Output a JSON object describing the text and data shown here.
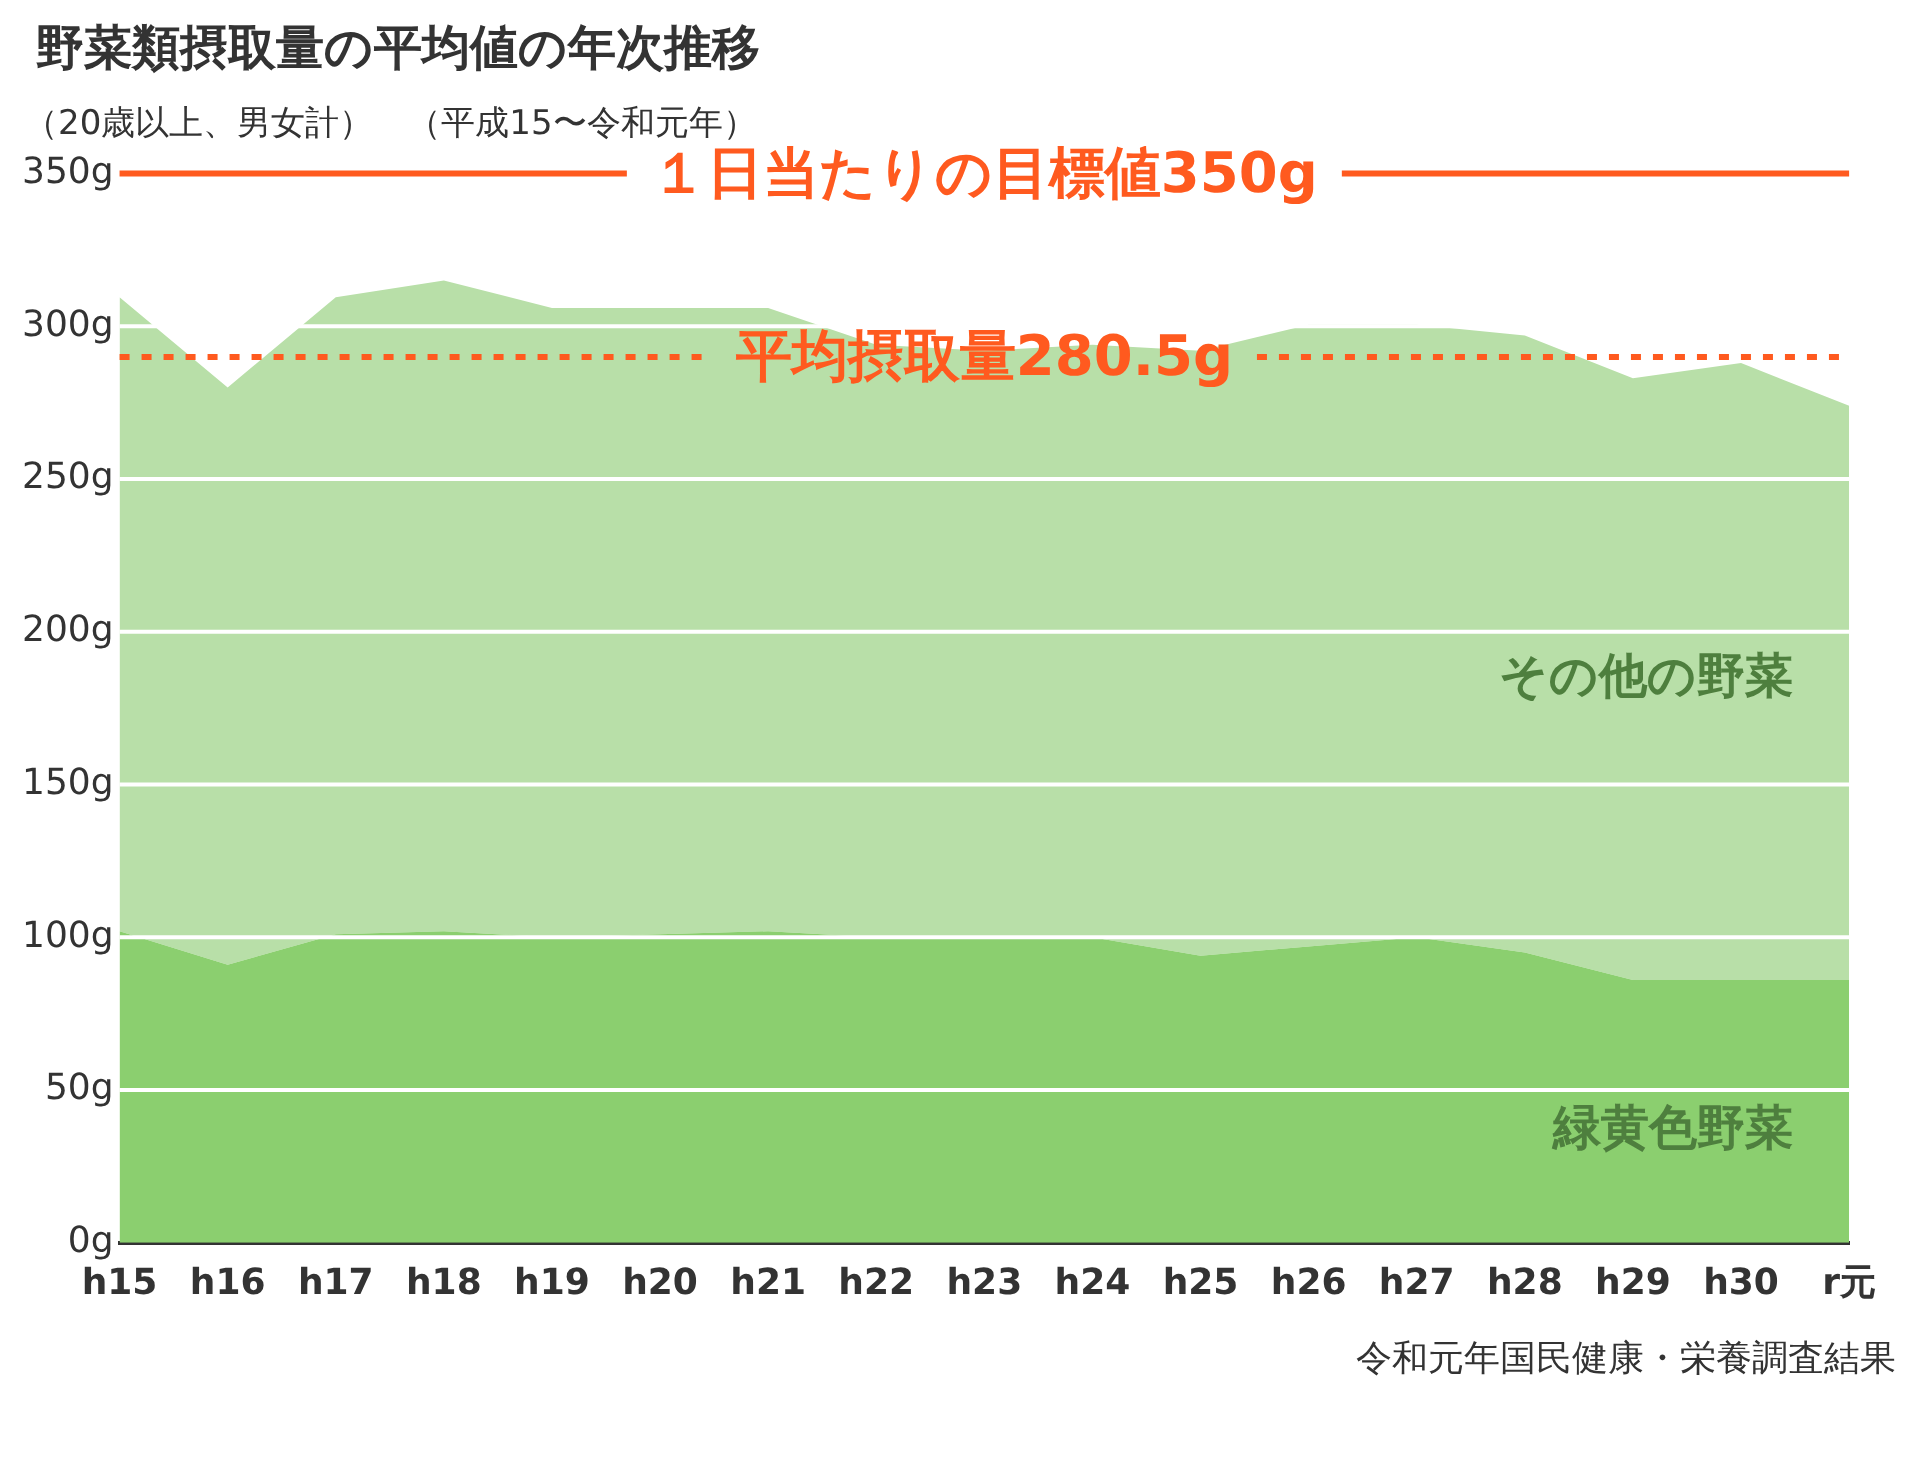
{
  "chart_data": {
    "type": "area",
    "stacked": true,
    "title": "野菜類摂取量の平均値の年次推移",
    "subtitle": "（20歳以上、男女計）　（平成15〜令和元年）",
    "categories": [
      "h15",
      "h16",
      "h17",
      "h18",
      "h19",
      "h20",
      "h21",
      "h22",
      "h23",
      "h24",
      "h25",
      "h26",
      "h27",
      "h28",
      "h29",
      "h30",
      "r元"
    ],
    "series": [
      {
        "name": "緑黄色野菜",
        "color": "#8bcf6f",
        "values": [
          102,
          91,
          101,
          102,
          100,
          101,
          102,
          100,
          100,
          100,
          94,
          97,
          100,
          95,
          86,
          86,
          86
        ]
      },
      {
        "name": "その他の野菜",
        "color": "#b8dfa8",
        "values": [
          207.5,
          189,
          208.5,
          213,
          206,
          205,
          204,
          194,
          192,
          194,
          198,
          203.5,
          200.5,
          202,
          197,
          202,
          188
        ]
      }
    ],
    "ylim": [
      0,
      350
    ],
    "yticks": [
      {
        "value": 0,
        "label": "0g"
      },
      {
        "value": 50,
        "label": "50g"
      },
      {
        "value": 100,
        "label": "100g"
      },
      {
        "value": 150,
        "label": "150g"
      },
      {
        "value": 200,
        "label": "200g"
      },
      {
        "value": 250,
        "label": "250g"
      },
      {
        "value": 300,
        "label": "300g"
      },
      {
        "value": 350,
        "label": "350g"
      }
    ],
    "grid": "y",
    "legend": false,
    "ref_lines": [
      {
        "axis": "y",
        "value": 350,
        "label": "１日当たりの目標値350g",
        "color": "#ff5a1f",
        "line_style": "solid"
      },
      {
        "axis": "y",
        "value": 290,
        "label": "平均摂取量280.5g",
        "color": "#ff5a1f",
        "line_style": "dotted"
      }
    ],
    "annotations": [
      "令和元年国民健康・栄養調査結果"
    ]
  }
}
